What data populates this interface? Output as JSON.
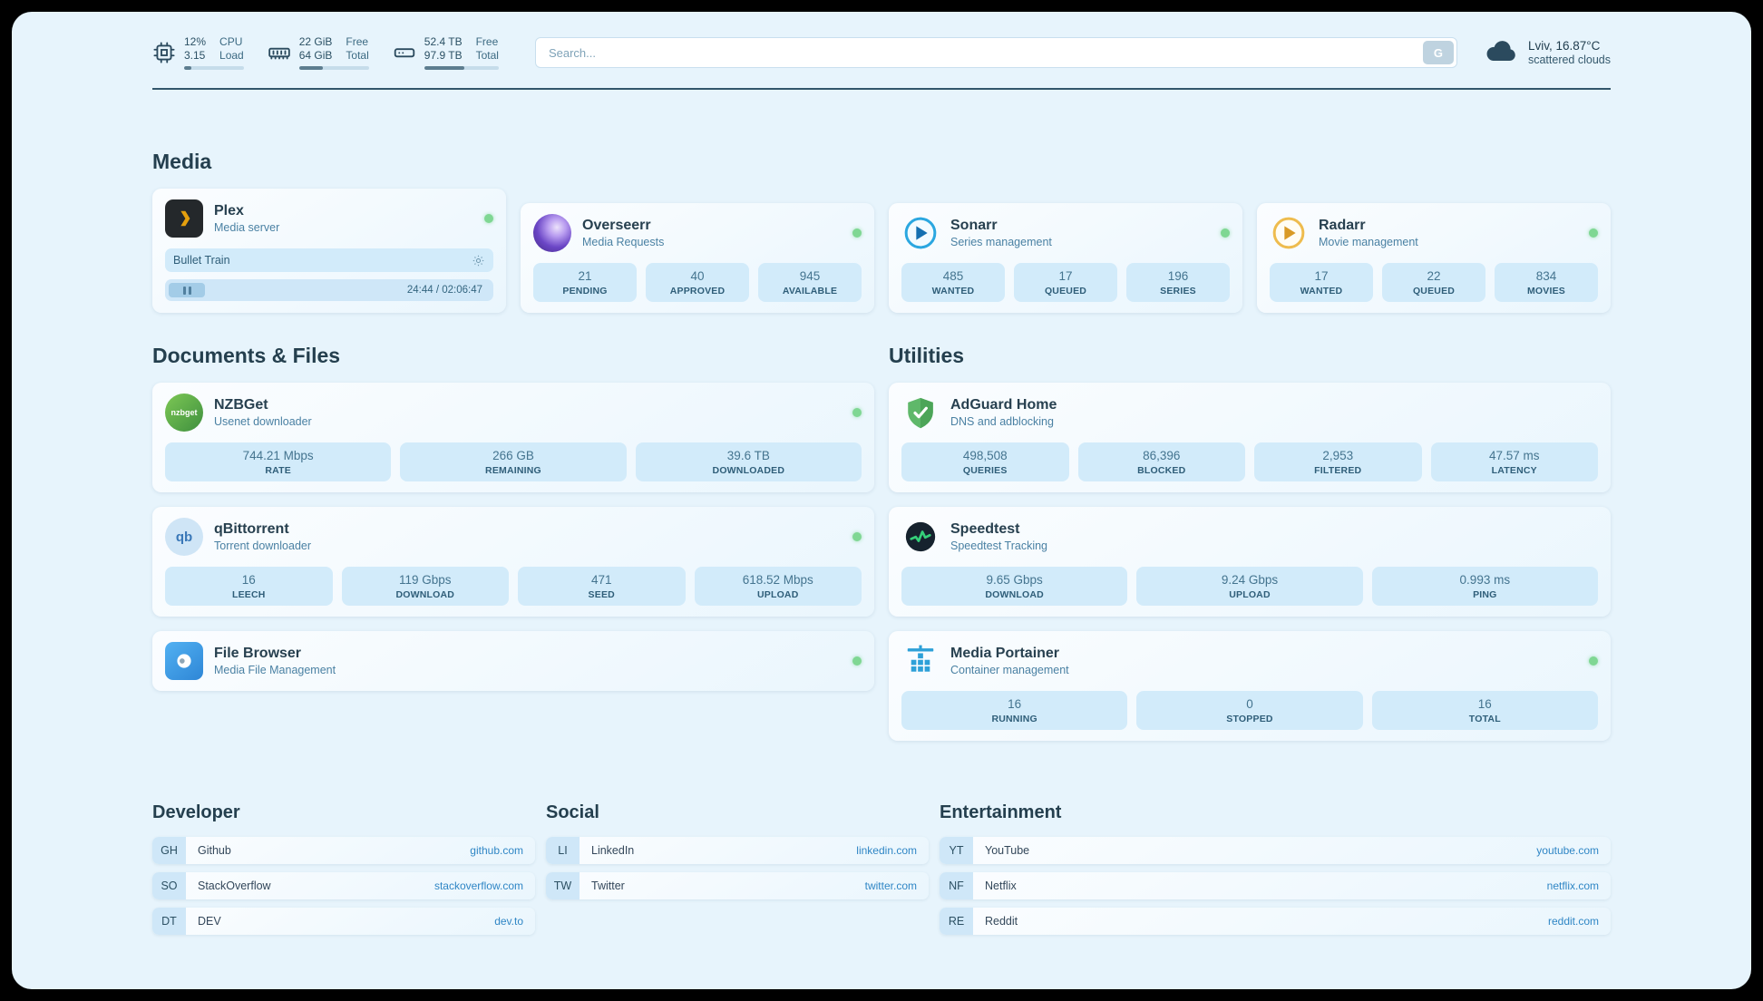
{
  "topbar": {
    "cpu": {
      "value_top": "12%",
      "value_bottom": "3.15",
      "label_top": "CPU",
      "label_bottom": "Load",
      "bar_percent": 12
    },
    "ram": {
      "value_top": "22 GiB",
      "value_bottom": "64 GiB",
      "label_top": "Free",
      "label_bottom": "Total",
      "bar_percent": 34
    },
    "disk": {
      "value_top": "52.4 TB",
      "value_bottom": "97.9 TB",
      "label_top": "Free",
      "label_bottom": "Total",
      "bar_percent": 54
    },
    "search": {
      "placeholder": "Search...",
      "button_label": "G"
    },
    "weather": {
      "location": "Lviv, 16.87°C",
      "condition": "scattered clouds"
    }
  },
  "media": {
    "title": "Media",
    "plex": {
      "name": "Plex",
      "subtitle": "Media server",
      "online": true,
      "now_playing": "Bullet Train",
      "time": "24:44 / 02:06:47"
    },
    "overseerr": {
      "name": "Overseerr",
      "subtitle": "Media Requests",
      "online": true,
      "stats": [
        {
          "value": "21",
          "label": "PENDING"
        },
        {
          "value": "40",
          "label": "APPROVED"
        },
        {
          "value": "945",
          "label": "AVAILABLE"
        }
      ]
    },
    "sonarr": {
      "name": "Sonarr",
      "subtitle": "Series management",
      "online": true,
      "stats": [
        {
          "value": "485",
          "label": "WANTED"
        },
        {
          "value": "17",
          "label": "QUEUED"
        },
        {
          "value": "196",
          "label": "SERIES"
        }
      ]
    },
    "radarr": {
      "name": "Radarr",
      "subtitle": "Movie management",
      "online": true,
      "stats": [
        {
          "value": "17",
          "label": "WANTED"
        },
        {
          "value": "22",
          "label": "QUEUED"
        },
        {
          "value": "834",
          "label": "MOVIES"
        }
      ]
    }
  },
  "documents": {
    "title": "Documents & Files",
    "nzbget": {
      "name": "NZBGet",
      "subtitle": "Usenet downloader",
      "online": true,
      "stats": [
        {
          "value": "744.21 Mbps",
          "label": "RATE"
        },
        {
          "value": "266 GB",
          "label": "REMAINING"
        },
        {
          "value": "39.6 TB",
          "label": "DOWNLOADED"
        }
      ]
    },
    "qbittorrent": {
      "name": "qBittorrent",
      "subtitle": "Torrent downloader",
      "online": true,
      "stats": [
        {
          "value": "16",
          "label": "LEECH"
        },
        {
          "value": "119 Gbps",
          "label": "DOWNLOAD"
        },
        {
          "value": "471",
          "label": "SEED"
        },
        {
          "value": "618.52 Mbps",
          "label": "UPLOAD"
        }
      ]
    },
    "filebrowser": {
      "name": "File Browser",
      "subtitle": "Media File Management",
      "online": true
    }
  },
  "utilities": {
    "title": "Utilities",
    "adguard": {
      "name": "AdGuard Home",
      "subtitle": "DNS and adblocking",
      "stats": [
        {
          "value": "498,508",
          "label": "QUERIES"
        },
        {
          "value": "86,396",
          "label": "BLOCKED"
        },
        {
          "value": "2,953",
          "label": "FILTERED"
        },
        {
          "value": "47.57 ms",
          "label": "LATENCY"
        }
      ]
    },
    "speedtest": {
      "name": "Speedtest",
      "subtitle": "Speedtest Tracking",
      "stats": [
        {
          "value": "9.65 Gbps",
          "label": "DOWNLOAD"
        },
        {
          "value": "9.24 Gbps",
          "label": "UPLOAD"
        },
        {
          "value": "0.993 ms",
          "label": "PING"
        }
      ]
    },
    "portainer": {
      "name": "Media Portainer",
      "subtitle": "Container management",
      "online": true,
      "stats": [
        {
          "value": "16",
          "label": "RUNNING"
        },
        {
          "value": "0",
          "label": "STOPPED"
        },
        {
          "value": "16",
          "label": "TOTAL"
        }
      ]
    }
  },
  "bookmarks": {
    "developer": {
      "title": "Developer",
      "items": [
        {
          "abbr": "GH",
          "name": "Github",
          "domain": "github.com"
        },
        {
          "abbr": "SO",
          "name": "StackOverflow",
          "domain": "stackoverflow.com"
        },
        {
          "abbr": "DT",
          "name": "DEV",
          "domain": "dev.to"
        }
      ]
    },
    "social": {
      "title": "Social",
      "items": [
        {
          "abbr": "LI",
          "name": "LinkedIn",
          "domain": "linkedin.com"
        },
        {
          "abbr": "TW",
          "name": "Twitter",
          "domain": "twitter.com"
        }
      ]
    },
    "entertainment": {
      "title": "Entertainment",
      "items": [
        {
          "abbr": "YT",
          "name": "YouTube",
          "domain": "youtube.com"
        },
        {
          "abbr": "NF",
          "name": "Netflix",
          "domain": "netflix.com"
        },
        {
          "abbr": "RE",
          "name": "Reddit",
          "domain": "reddit.com"
        }
      ]
    }
  },
  "icons": {
    "nzbget_text": "nzbget",
    "qbittorrent_text": "qb"
  }
}
